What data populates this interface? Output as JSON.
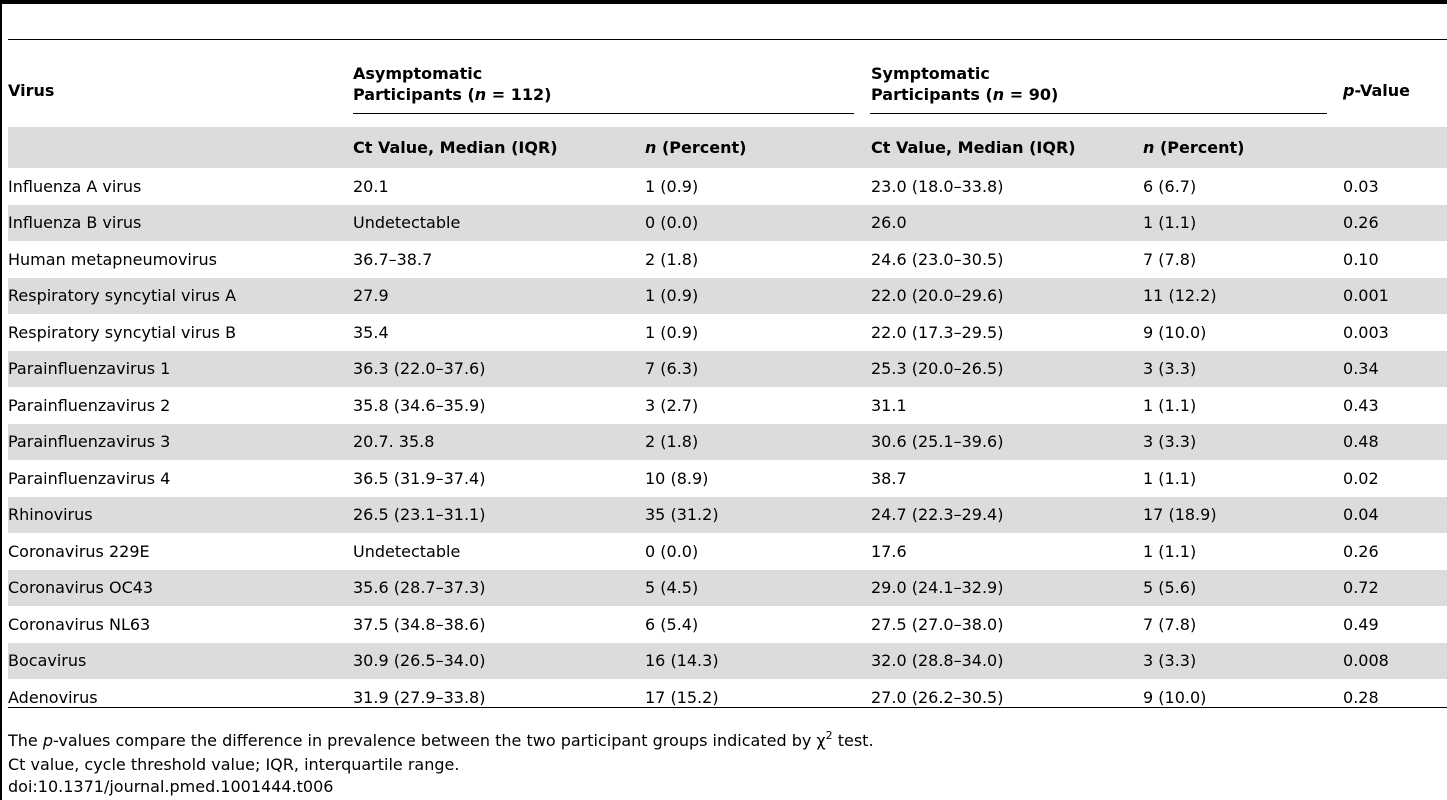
{
  "table": {
    "headers": {
      "virus": "Virus",
      "asymptomatic_line1": "Asymptomatic",
      "asymptomatic_line2_pre": "Participants (",
      "asymptomatic_n_symbol": "n",
      "asymptomatic_line2_post": " = 112)",
      "symptomatic_line1": "Symptomatic",
      "symptomatic_line2_pre": "Participants (",
      "symptomatic_n_symbol": "n",
      "symptomatic_line2_post": " = 90)",
      "pvalue_symbol": "p",
      "pvalue_rest": "-Value",
      "ct_value": "Ct Value, Median (IQR)",
      "n_symbol": "n",
      "n_percent_rest": " (Percent)"
    },
    "rows": [
      {
        "virus": "Influenza A virus",
        "asym_ct": "20.1",
        "asym_n": "1 (0.9)",
        "sym_ct": "23.0 (18.0–33.8)",
        "sym_n": "6 (6.7)",
        "p": "0.03"
      },
      {
        "virus": "Influenza B virus",
        "asym_ct": "Undetectable",
        "asym_n": "0 (0.0)",
        "sym_ct": "26.0",
        "sym_n": "1 (1.1)",
        "p": "0.26"
      },
      {
        "virus": "Human metapneumovirus",
        "asym_ct": "36.7–38.7",
        "asym_n": "2 (1.8)",
        "sym_ct": "24.6 (23.0–30.5)",
        "sym_n": "7 (7.8)",
        "p": "0.10"
      },
      {
        "virus": "Respiratory syncytial virus A",
        "asym_ct": "27.9",
        "asym_n": "1 (0.9)",
        "sym_ct": "22.0 (20.0–29.6)",
        "sym_n": "11 (12.2)",
        "p": "0.001"
      },
      {
        "virus": "Respiratory syncytial virus B",
        "asym_ct": "35.4",
        "asym_n": "1 (0.9)",
        "sym_ct": "22.0 (17.3–29.5)",
        "sym_n": "9 (10.0)",
        "p": "0.003"
      },
      {
        "virus": "Parainfluenzavirus 1",
        "asym_ct": "36.3 (22.0–37.6)",
        "asym_n": "7 (6.3)",
        "sym_ct": "25.3 (20.0–26.5)",
        "sym_n": "3 (3.3)",
        "p": "0.34"
      },
      {
        "virus": "Parainfluenzavirus 2",
        "asym_ct": "35.8 (34.6–35.9)",
        "asym_n": "3 (2.7)",
        "sym_ct": "31.1",
        "sym_n": "1 (1.1)",
        "p": "0.43"
      },
      {
        "virus": "Parainfluenzavirus 3",
        "asym_ct": "20.7. 35.8",
        "asym_n": "2 (1.8)",
        "sym_ct": "30.6 (25.1–39.6)",
        "sym_n": "3 (3.3)",
        "p": "0.48"
      },
      {
        "virus": "Parainfluenzavirus 4",
        "asym_ct": "36.5 (31.9–37.4)",
        "asym_n": "10 (8.9)",
        "sym_ct": "38.7",
        "sym_n": "1 (1.1)",
        "p": "0.02"
      },
      {
        "virus": "Rhinovirus",
        "asym_ct": "26.5 (23.1–31.1)",
        "asym_n": "35 (31.2)",
        "sym_ct": "24.7 (22.3–29.4)",
        "sym_n": "17 (18.9)",
        "p": "0.04"
      },
      {
        "virus": "Coronavirus 229E",
        "asym_ct": "Undetectable",
        "asym_n": "0 (0.0)",
        "sym_ct": "17.6",
        "sym_n": "1 (1.1)",
        "p": "0.26"
      },
      {
        "virus": "Coronavirus OC43",
        "asym_ct": "35.6 (28.7–37.3)",
        "asym_n": "5 (4.5)",
        "sym_ct": "29.0 (24.1–32.9)",
        "sym_n": "5 (5.6)",
        "p": "0.72"
      },
      {
        "virus": "Coronavirus NL63",
        "asym_ct": "37.5 (34.8–38.6)",
        "asym_n": "6 (5.4)",
        "sym_ct": "27.5 (27.0–38.0)",
        "sym_n": "7 (7.8)",
        "p": "0.49"
      },
      {
        "virus": "Bocavirus",
        "asym_ct": "30.9 (26.5–34.0)",
        "asym_n": "16 (14.3)",
        "sym_ct": "32.0 (28.8–34.0)",
        "sym_n": "3 (3.3)",
        "p": "0.008"
      },
      {
        "virus": "Adenovirus",
        "asym_ct": "31.9 (27.9–33.8)",
        "asym_n": "17 (15.2)",
        "sym_ct": "27.0 (26.2–30.5)",
        "sym_n": "9 (10.0)",
        "p": "0.28"
      }
    ]
  },
  "footnotes": {
    "line1_pre": "The ",
    "line1_p": "p",
    "line1_mid": "-values compare the difference in prevalence between the two participant groups indicated by χ",
    "line1_sup": "2",
    "line1_post": " test.",
    "line2": "Ct value, cycle threshold value; IQR, interquartile range.",
    "doi": "doi:10.1371/journal.pmed.1001444.t006"
  },
  "colors": {
    "shade": "#dcdcdc",
    "rule": "#000000"
  }
}
